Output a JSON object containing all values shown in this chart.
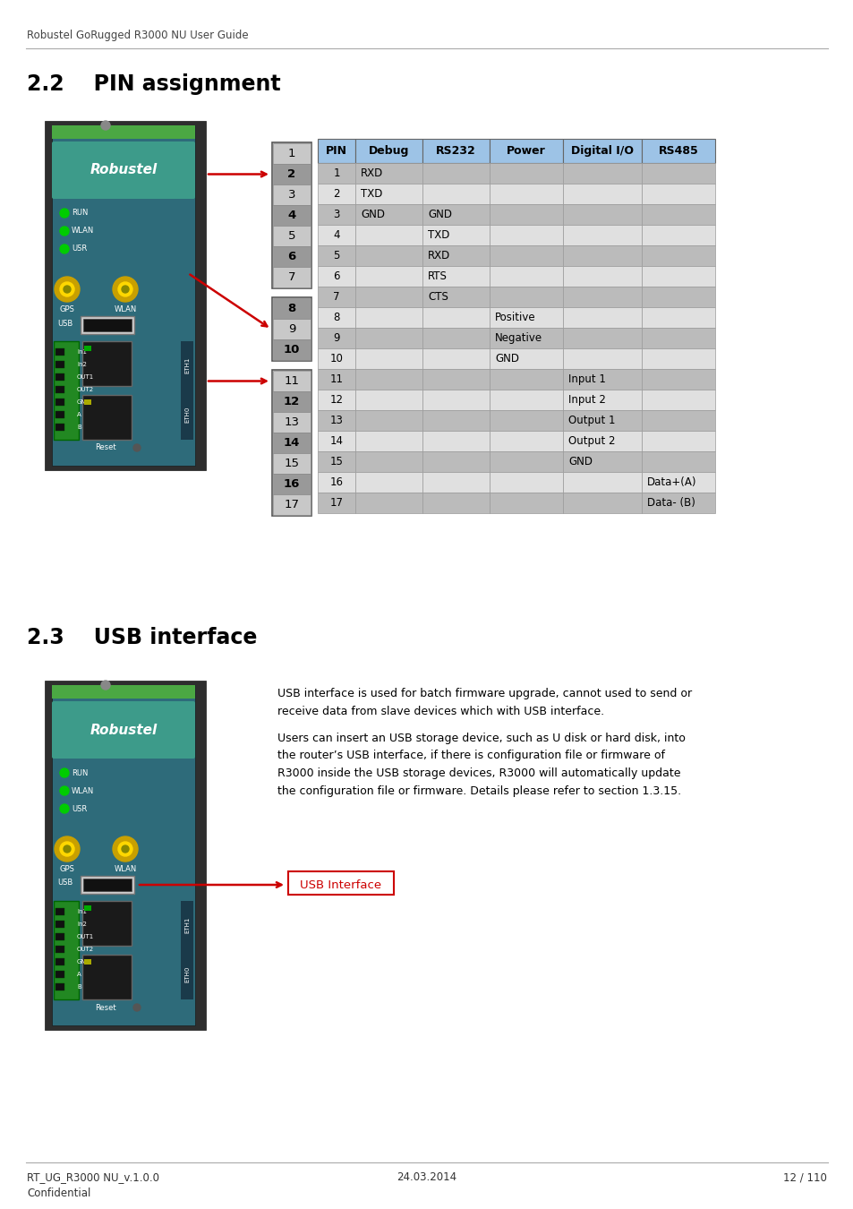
{
  "page_title": "Robustel GoRugged R3000 NU User Guide",
  "section_22_title": "2.2    PIN assignment",
  "section_23_title": "2.3    USB interface",
  "table_header": [
    "PIN",
    "Debug",
    "RS232",
    "Power",
    "Digital I/O",
    "RS485"
  ],
  "table_rows": [
    [
      "1",
      "RXD",
      "",
      "",
      "",
      ""
    ],
    [
      "2",
      "TXD",
      "",
      "",
      "",
      ""
    ],
    [
      "3",
      "GND",
      "GND",
      "",
      "",
      ""
    ],
    [
      "4",
      "",
      "TXD",
      "",
      "",
      ""
    ],
    [
      "5",
      "",
      "RXD",
      "",
      "",
      ""
    ],
    [
      "6",
      "",
      "RTS",
      "",
      "",
      ""
    ],
    [
      "7",
      "",
      "CTS",
      "",
      "",
      ""
    ],
    [
      "8",
      "",
      "",
      "Positive",
      "",
      ""
    ],
    [
      "9",
      "",
      "",
      "Negative",
      "",
      ""
    ],
    [
      "10",
      "",
      "",
      "GND",
      "",
      ""
    ],
    [
      "11",
      "",
      "",
      "",
      "Input 1",
      ""
    ],
    [
      "12",
      "",
      "",
      "",
      "Input 2",
      ""
    ],
    [
      "13",
      "",
      "",
      "",
      "Output 1",
      ""
    ],
    [
      "14",
      "",
      "",
      "",
      "Output 2",
      ""
    ],
    [
      "15",
      "",
      "",
      "",
      "GND",
      ""
    ],
    [
      "16",
      "",
      "",
      "",
      "",
      "Data+(A)"
    ],
    [
      "17",
      "",
      "",
      "",
      "",
      "Data- (B)"
    ]
  ],
  "header_bg": "#9DC3E6",
  "row_dark_bg": "#BBBBBB",
  "row_light_bg": "#E0E0E0",
  "pin_dark_bg": "#999999",
  "pin_light_bg": "#C8C8C8",
  "pin_group_border": "#555555",
  "table_border": "#666666",
  "usb_text_para1": "USB interface is used for batch firmware upgrade, cannot used to send or\nreceive data from slave devices which with USB interface.",
  "usb_text_para2": "Users can insert an USB storage device, such as U disk or hard disk, into\nthe router’s USB interface, if there is configuration file or firmware of\nR3000 inside the USB storage devices, R3000 will automatically update\nthe configuration file or firmware. Details please refer to section 1.3.15.",
  "usb_label": "USB Interface",
  "footer_left": "RT_UG_R3000 NU_v.1.0.0\nConfidential",
  "footer_center": "24.03.2014",
  "footer_right": "12 / 110",
  "footer_line_color": "#AAAAAA",
  "header_line_color": "#AAAAAA",
  "arrow_color": "#CC0000",
  "usb_label_color": "#CC0000",
  "usb_box_color": "#CC0000",
  "section_title_color": "#000000",
  "body_text_color": "#000000",
  "device_body_color": "#2E2E2E",
  "device_front_color": "#2E6B7A",
  "device_teal_color": "#3D9B8A",
  "device_top_green": "#4BA843"
}
